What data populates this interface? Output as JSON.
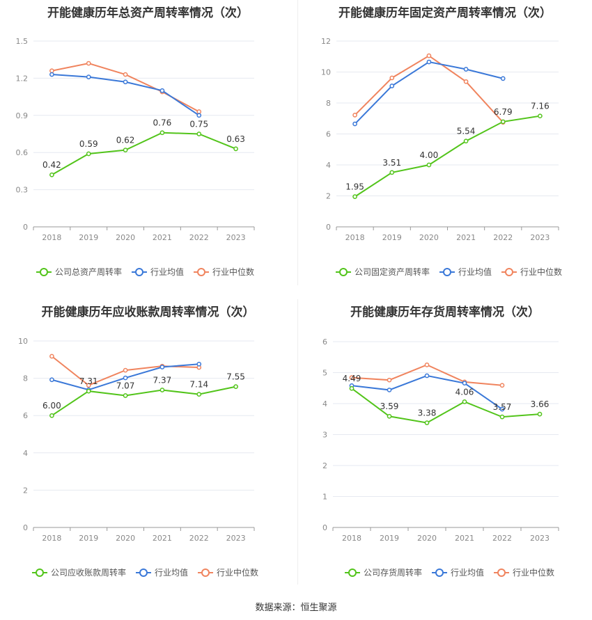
{
  "source_text": "数据来源：恒生聚源",
  "colors": {
    "company": "#52c41a",
    "industry_avg": "#3a78d8",
    "industry_median": "#f0845e"
  },
  "legend": {
    "avg_label": "行业均值",
    "median_label": "行业中位数"
  },
  "chart_data": [
    {
      "type": "line",
      "title": "开能健康历年总资产周转率情况（次）",
      "categories": [
        "2018",
        "2019",
        "2020",
        "2021",
        "2022",
        "2023"
      ],
      "ylim": [
        0,
        1.5
      ],
      "yticks": [
        "0",
        "0.3",
        "0.6",
        "0.9",
        "1.2",
        "1.5"
      ],
      "series": [
        {
          "name": "公司总资产周转率",
          "values": [
            0.42,
            0.59,
            0.62,
            0.76,
            0.75,
            0.63
          ],
          "labels": [
            "0.42",
            "0.59",
            "0.62",
            "0.76",
            "0.75",
            "0.63"
          ]
        },
        {
          "name": "行业均值",
          "values": [
            1.23,
            1.21,
            1.17,
            1.1,
            0.9,
            null
          ]
        },
        {
          "name": "行业中位数",
          "values": [
            1.26,
            1.32,
            1.23,
            1.09,
            0.93,
            null
          ]
        }
      ]
    },
    {
      "type": "line",
      "title": "开能健康历年固定资产周转率情况（次）",
      "categories": [
        "2018",
        "2019",
        "2020",
        "2021",
        "2022",
        "2023"
      ],
      "ylim": [
        0,
        12
      ],
      "yticks": [
        "0",
        "2",
        "4",
        "6",
        "8",
        "10",
        "12"
      ],
      "series": [
        {
          "name": "公司固定资产周转率",
          "values": [
            1.95,
            3.51,
            4.0,
            5.54,
            6.79,
            7.16
          ],
          "labels": [
            "1.95",
            "3.51",
            "4.00",
            "5.54",
            "6.79",
            "7.16"
          ]
        },
        {
          "name": "行业均值",
          "values": [
            6.65,
            9.1,
            10.65,
            10.18,
            9.58,
            null
          ]
        },
        {
          "name": "行业中位数",
          "values": [
            7.22,
            9.62,
            11.05,
            9.38,
            6.75,
            null
          ]
        }
      ]
    },
    {
      "type": "line",
      "title": "开能健康历年应收账款周转率情况（次）",
      "categories": [
        "2018",
        "2019",
        "2020",
        "2021",
        "2022",
        "2023"
      ],
      "ylim": [
        0,
        10
      ],
      "yticks": [
        "0",
        "2",
        "4",
        "6",
        "8",
        "10"
      ],
      "series": [
        {
          "name": "公司应收账款周转率",
          "values": [
            6.0,
            7.31,
            7.07,
            7.37,
            7.14,
            7.55
          ],
          "labels": [
            "6.00",
            "7.31",
            "7.07",
            "7.37",
            "7.14",
            "7.55"
          ]
        },
        {
          "name": "行业均值",
          "values": [
            7.92,
            7.38,
            8.02,
            8.6,
            8.76,
            null
          ]
        },
        {
          "name": "行业中位数",
          "values": [
            9.18,
            7.62,
            8.43,
            8.65,
            8.58,
            null
          ]
        }
      ]
    },
    {
      "type": "line",
      "title": "开能健康历年存货周转率情况（次）",
      "categories": [
        "2018",
        "2019",
        "2020",
        "2021",
        "2022",
        "2023"
      ],
      "ylim": [
        0,
        6
      ],
      "yticks": [
        "0",
        "1",
        "2",
        "3",
        "4",
        "5",
        "6"
      ],
      "series": [
        {
          "name": "公司存货周转率",
          "values": [
            4.49,
            3.59,
            3.38,
            4.06,
            3.57,
            3.66
          ],
          "labels": [
            "4.49",
            "3.59",
            "3.38",
            "4.06",
            "3.57",
            "3.66"
          ]
        },
        {
          "name": "行业均值",
          "values": [
            4.58,
            4.44,
            4.9,
            4.66,
            3.82,
            null
          ]
        },
        {
          "name": "行业中位数",
          "values": [
            4.84,
            4.76,
            5.25,
            4.7,
            4.59,
            null
          ]
        }
      ]
    }
  ]
}
